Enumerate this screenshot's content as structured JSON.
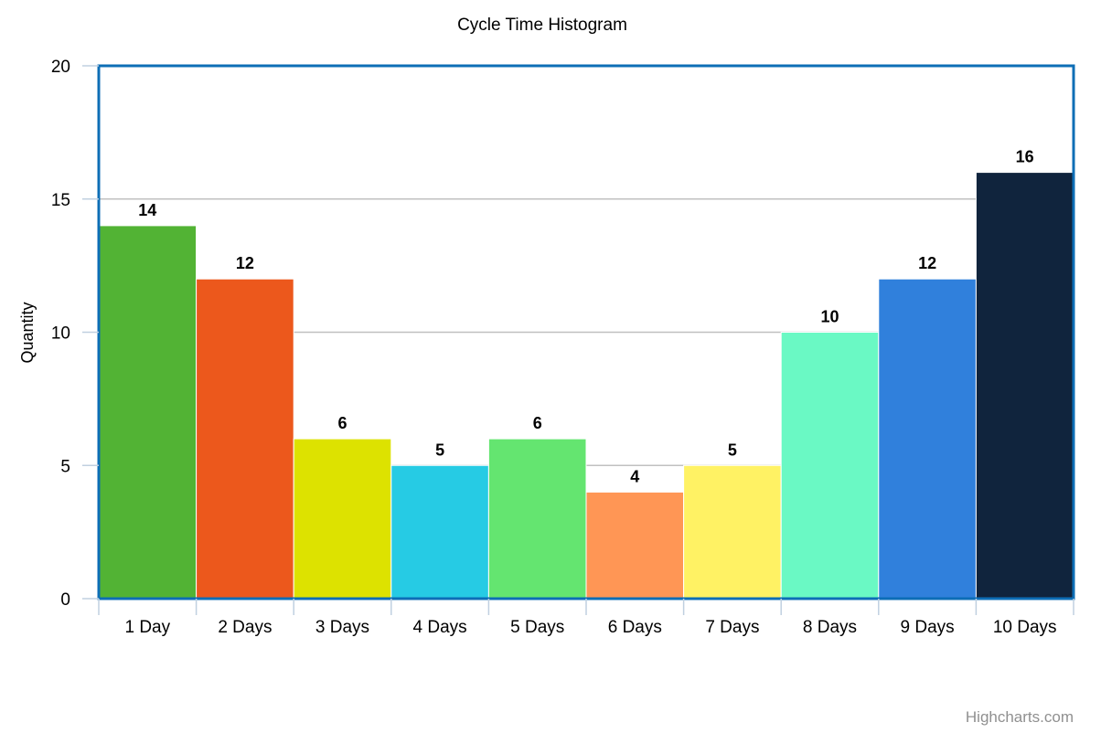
{
  "chart_data": {
    "type": "bar",
    "title": "Cycle Time Histogram",
    "xlabel": "",
    "ylabel": "Quantity",
    "categories": [
      "1 Day",
      "2 Days",
      "3 Days",
      "4 Days",
      "5 Days",
      "6 Days",
      "7 Days",
      "8 Days",
      "9 Days",
      "10 Days"
    ],
    "values": [
      14,
      12,
      6,
      5,
      6,
      4,
      5,
      10,
      12,
      16
    ],
    "colors": [
      "#52b334",
      "#ec581c",
      "#dde200",
      "#26cbe4",
      "#64e570",
      "#ff9655",
      "#fff264",
      "#6af9c4",
      "#3080dc",
      "#10243d"
    ],
    "ylim": [
      0,
      20
    ],
    "yticks": [
      "0",
      "5",
      "10",
      "15",
      "20"
    ],
    "grid": true,
    "legend": false,
    "data_labels": true,
    "plot_border_color": "#0d6eb6"
  },
  "credit": "Highcharts.com"
}
